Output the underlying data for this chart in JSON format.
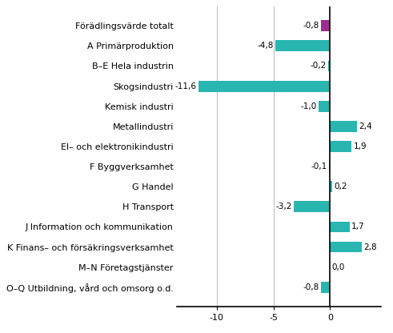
{
  "categories": [
    "O–Q Utbildning, vård och omsorg o.d.",
    "M–N Företagstjänster",
    "K Finans– och försäkringsverksamhet",
    "J Information och kommunikation",
    "H Transport",
    "G Handel",
    "F Byggverksamhet",
    "El– och elektronikindustri",
    "Metallindustri",
    "Kemisk industri",
    "Skogsindustri",
    "B–E Hela industrin",
    "A Primärproduktion",
    "Förädlingsvärde totalt"
  ],
  "values": [
    -0.8,
    0.0,
    2.8,
    1.7,
    -3.2,
    0.2,
    -0.1,
    1.9,
    2.4,
    -1.0,
    -11.6,
    -0.2,
    -4.8,
    -0.8
  ],
  "bar_colors": [
    "#29b5b0",
    "#29b5b0",
    "#29b5b0",
    "#29b5b0",
    "#29b5b0",
    "#29b5b0",
    "#29b5b0",
    "#29b5b0",
    "#29b5b0",
    "#29b5b0",
    "#29b5b0",
    "#29b5b0",
    "#29b5b0",
    "#9b2f8e"
  ],
  "xlim": [
    -13.5,
    4.5
  ],
  "xticks": [
    -10,
    -5,
    0
  ],
  "grid_color": "#c0c0c0",
  "background_color": "#ffffff",
  "label_fontsize": 8.0,
  "value_fontsize": 7.5,
  "bar_height": 0.55
}
